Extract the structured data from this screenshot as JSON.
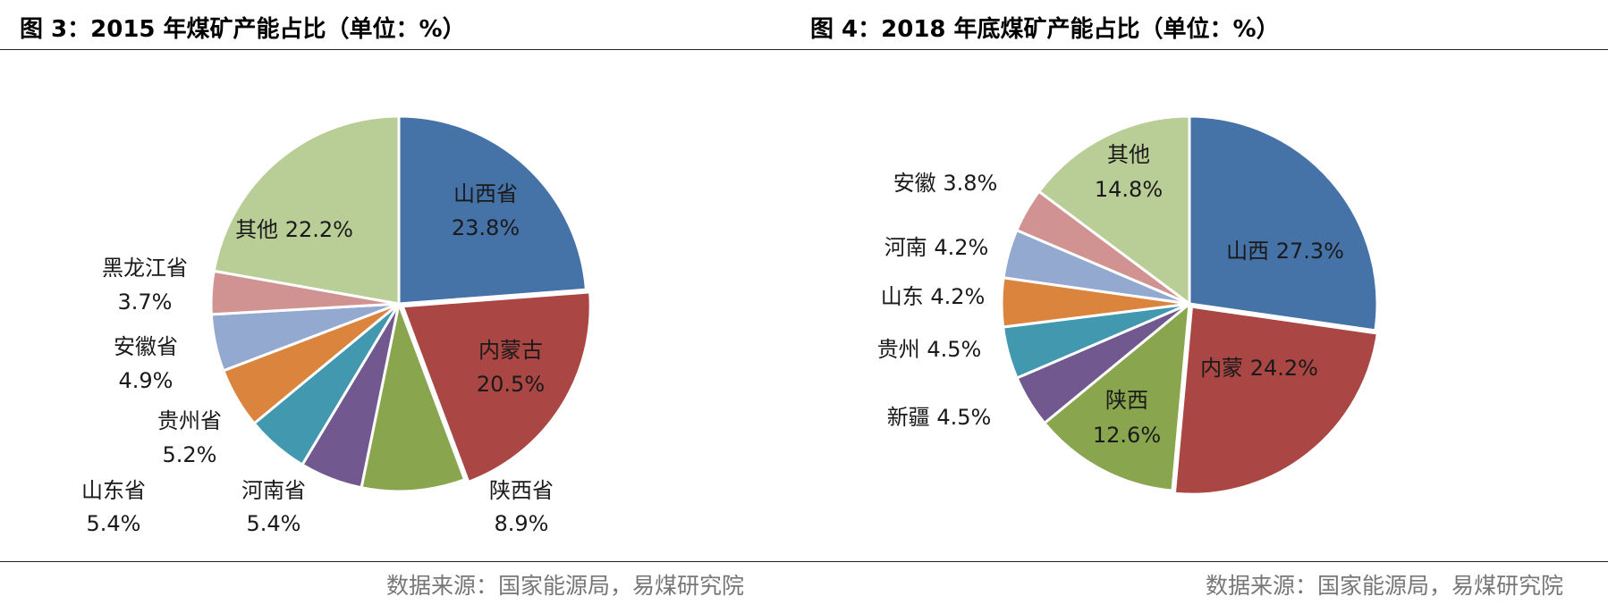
{
  "source_text": "数据来源：国家能源局，易煤研究院",
  "chart_data": [
    {
      "type": "pie",
      "title": "图 3：2015 年煤矿产能占比（单位：%）",
      "slices": [
        {
          "name": "山西省",
          "value": 23.8,
          "label": "23.8%",
          "color": "#4572A7"
        },
        {
          "name": "内蒙古",
          "value": 20.5,
          "label": "20.5%",
          "color": "#AA4643"
        },
        {
          "name": "陕西省",
          "value": 8.9,
          "label": "8.9%",
          "color": "#89A54E"
        },
        {
          "name": "河南省",
          "value": 5.4,
          "label": "5.4%",
          "color": "#71588F"
        },
        {
          "name": "山东省",
          "value": 5.4,
          "label": "5.4%",
          "color": "#4198AF"
        },
        {
          "name": "贵州省",
          "value": 5.2,
          "label": "5.2%",
          "color": "#DB843D"
        },
        {
          "name": "安徽省",
          "value": 4.9,
          "label": "4.9%",
          "color": "#93A9CF"
        },
        {
          "name": "黑龙江省",
          "value": 3.7,
          "label": "3.7%",
          "color": "#D19392"
        },
        {
          "name": "其他",
          "value": 22.2,
          "label": "22.2%",
          "color": "#B9CD96"
        }
      ]
    },
    {
      "type": "pie",
      "title": "图 4：2018 年底煤矿产能占比（单位：%）",
      "slices": [
        {
          "name": "山西",
          "value": 27.3,
          "label": "27.3%",
          "color": "#4572A7"
        },
        {
          "name": "内蒙",
          "value": 24.2,
          "label": "24.2%",
          "color": "#AA4643"
        },
        {
          "name": "陕西",
          "value": 12.6,
          "label": "12.6%",
          "color": "#89A54E"
        },
        {
          "name": "新疆",
          "value": 4.5,
          "label": "4.5%",
          "color": "#71588F"
        },
        {
          "name": "贵州",
          "value": 4.5,
          "label": "4.5%",
          "color": "#4198AF"
        },
        {
          "name": "山东",
          "value": 4.2,
          "label": "4.2%",
          "color": "#DB843D"
        },
        {
          "name": "河南",
          "value": 4.2,
          "label": "4.2%",
          "color": "#93A9CF"
        },
        {
          "name": "安徽",
          "value": 3.8,
          "label": "3.8%",
          "color": "#D19392"
        },
        {
          "name": "其他",
          "value": 14.8,
          "label": "14.8%",
          "color": "#B9CD96"
        }
      ]
    }
  ]
}
